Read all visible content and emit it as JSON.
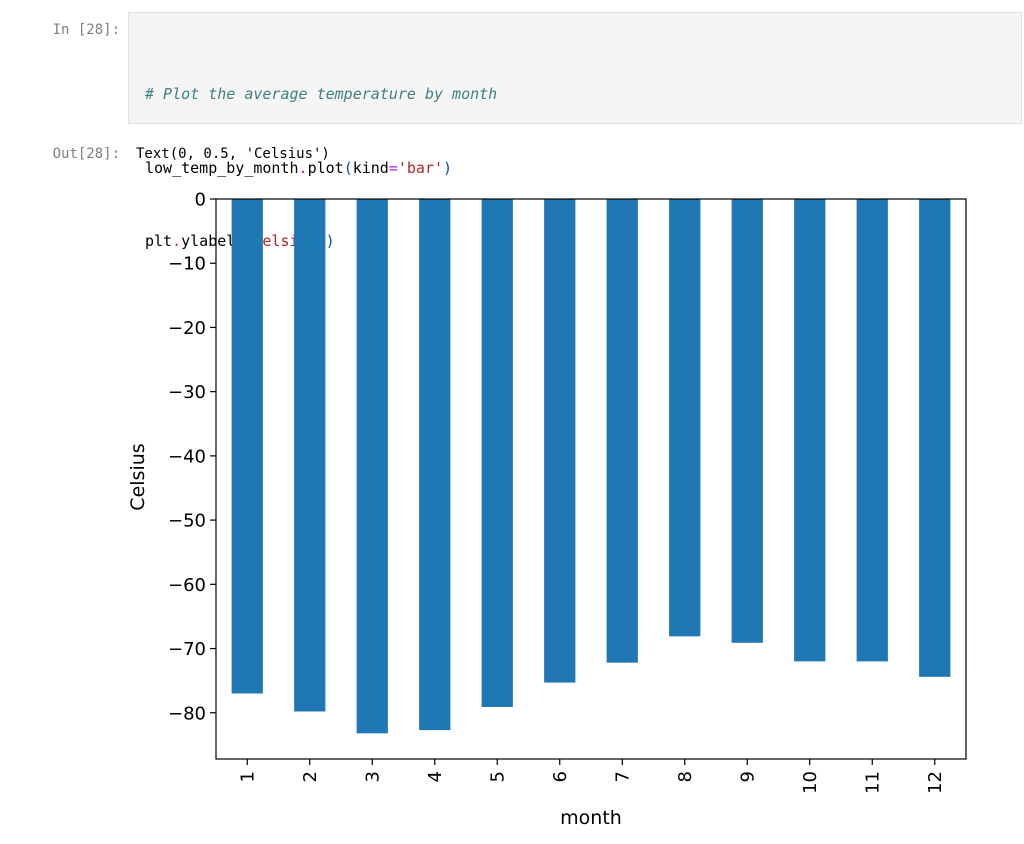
{
  "cell": {
    "in_prompt": "In [28]:",
    "out_prompt": "Out[28]:",
    "code": {
      "comment": "# Plot the average temperature by month",
      "line2_obj": "low_temp_by_month",
      "line2_dot": ".",
      "line2_method": "plot",
      "line2_open": "(",
      "line2_kw": "kind",
      "line2_eq": "=",
      "line2_str": "'bar'",
      "line2_close": ")",
      "line3_obj": "plt",
      "line3_dot": ".",
      "line3_method": "ylabel",
      "line3_open": "(",
      "line3_str": "'Celsius'",
      "line3_close": ")"
    },
    "output_text": "Text(0, 0.5, 'Celsius')"
  },
  "chart_data": {
    "type": "bar",
    "categories": [
      "1",
      "2",
      "3",
      "4",
      "5",
      "6",
      "7",
      "8",
      "9",
      "10",
      "11",
      "12"
    ],
    "values": [
      -77.0,
      -79.8,
      -83.2,
      -82.7,
      -79.1,
      -75.3,
      -72.2,
      -68.1,
      -69.1,
      -72.0,
      -72.0,
      -74.4
    ],
    "title": "",
    "xlabel": "month",
    "ylabel": "Celsius",
    "ylim": [
      -87.2,
      0
    ],
    "yticks": [
      0,
      -10,
      -20,
      -30,
      -40,
      -50,
      -60,
      -70,
      -80
    ],
    "ytick_labels": [
      "0",
      "−10",
      "−20",
      "−30",
      "−40",
      "−50",
      "−60",
      "−70",
      "−80"
    ],
    "bar_color": "#1f77b4",
    "grid": false,
    "legend": "none"
  }
}
